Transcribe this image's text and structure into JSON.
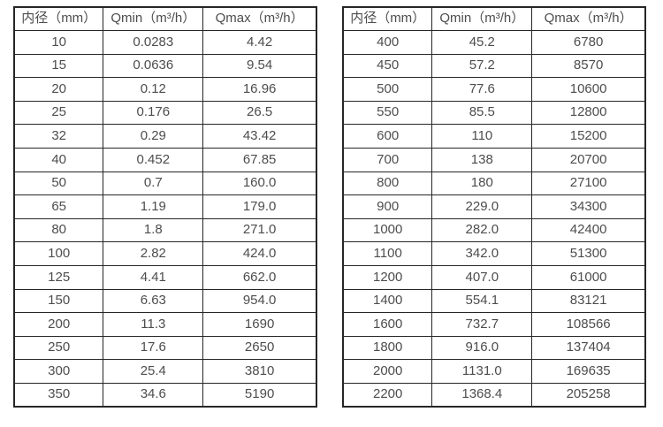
{
  "colors": {
    "text": "#4d4d4d",
    "border": "#262626",
    "background": "#ffffff"
  },
  "tables": [
    {
      "title": "small-diameter-flow-range-table",
      "headers": [
        "内径（mm）",
        "Qmin（m³/h）",
        "Qmax（m³/h）"
      ],
      "rows": [
        [
          "10",
          "0.0283",
          "4.42"
        ],
        [
          "15",
          "0.0636",
          "9.54"
        ],
        [
          "20",
          "0.12",
          "16.96"
        ],
        [
          "25",
          "0.176",
          "26.5"
        ],
        [
          "32",
          "0.29",
          "43.42"
        ],
        [
          "40",
          "0.452",
          "67.85"
        ],
        [
          "50",
          "0.7",
          "160.0"
        ],
        [
          "65",
          "1.19",
          "179.0"
        ],
        [
          "80",
          "1.8",
          "271.0"
        ],
        [
          "100",
          "2.82",
          "424.0"
        ],
        [
          "125",
          "4.41",
          "662.0"
        ],
        [
          "150",
          "6.63",
          "954.0"
        ],
        [
          "200",
          "11.3",
          "1690"
        ],
        [
          "250",
          "17.6",
          "2650"
        ],
        [
          "300",
          "25.4",
          "3810"
        ],
        [
          "350",
          "34.6",
          "5190"
        ]
      ]
    },
    {
      "title": "large-diameter-flow-range-table",
      "headers": [
        "内径（mm）",
        "Qmin（m³/h）",
        "Qmax（m³/h）"
      ],
      "rows": [
        [
          "400",
          "45.2",
          "6780"
        ],
        [
          "450",
          "57.2",
          "8570"
        ],
        [
          "500",
          "77.6",
          "10600"
        ],
        [
          "550",
          "85.5",
          "12800"
        ],
        [
          "600",
          "110",
          "15200"
        ],
        [
          "700",
          "138",
          "20700"
        ],
        [
          "800",
          "180",
          "27100"
        ],
        [
          "900",
          "229.0",
          "34300"
        ],
        [
          "1000",
          "282.0",
          "42400"
        ],
        [
          "1100",
          "342.0",
          "51300"
        ],
        [
          "1200",
          "407.0",
          "61000"
        ],
        [
          "1400",
          "554.1",
          "83121"
        ],
        [
          "1600",
          "732.7",
          "108566"
        ],
        [
          "1800",
          "916.0",
          "137404"
        ],
        [
          "2000",
          "1131.0",
          "169635"
        ],
        [
          "2200",
          "1368.4",
          "205258"
        ]
      ]
    }
  ]
}
